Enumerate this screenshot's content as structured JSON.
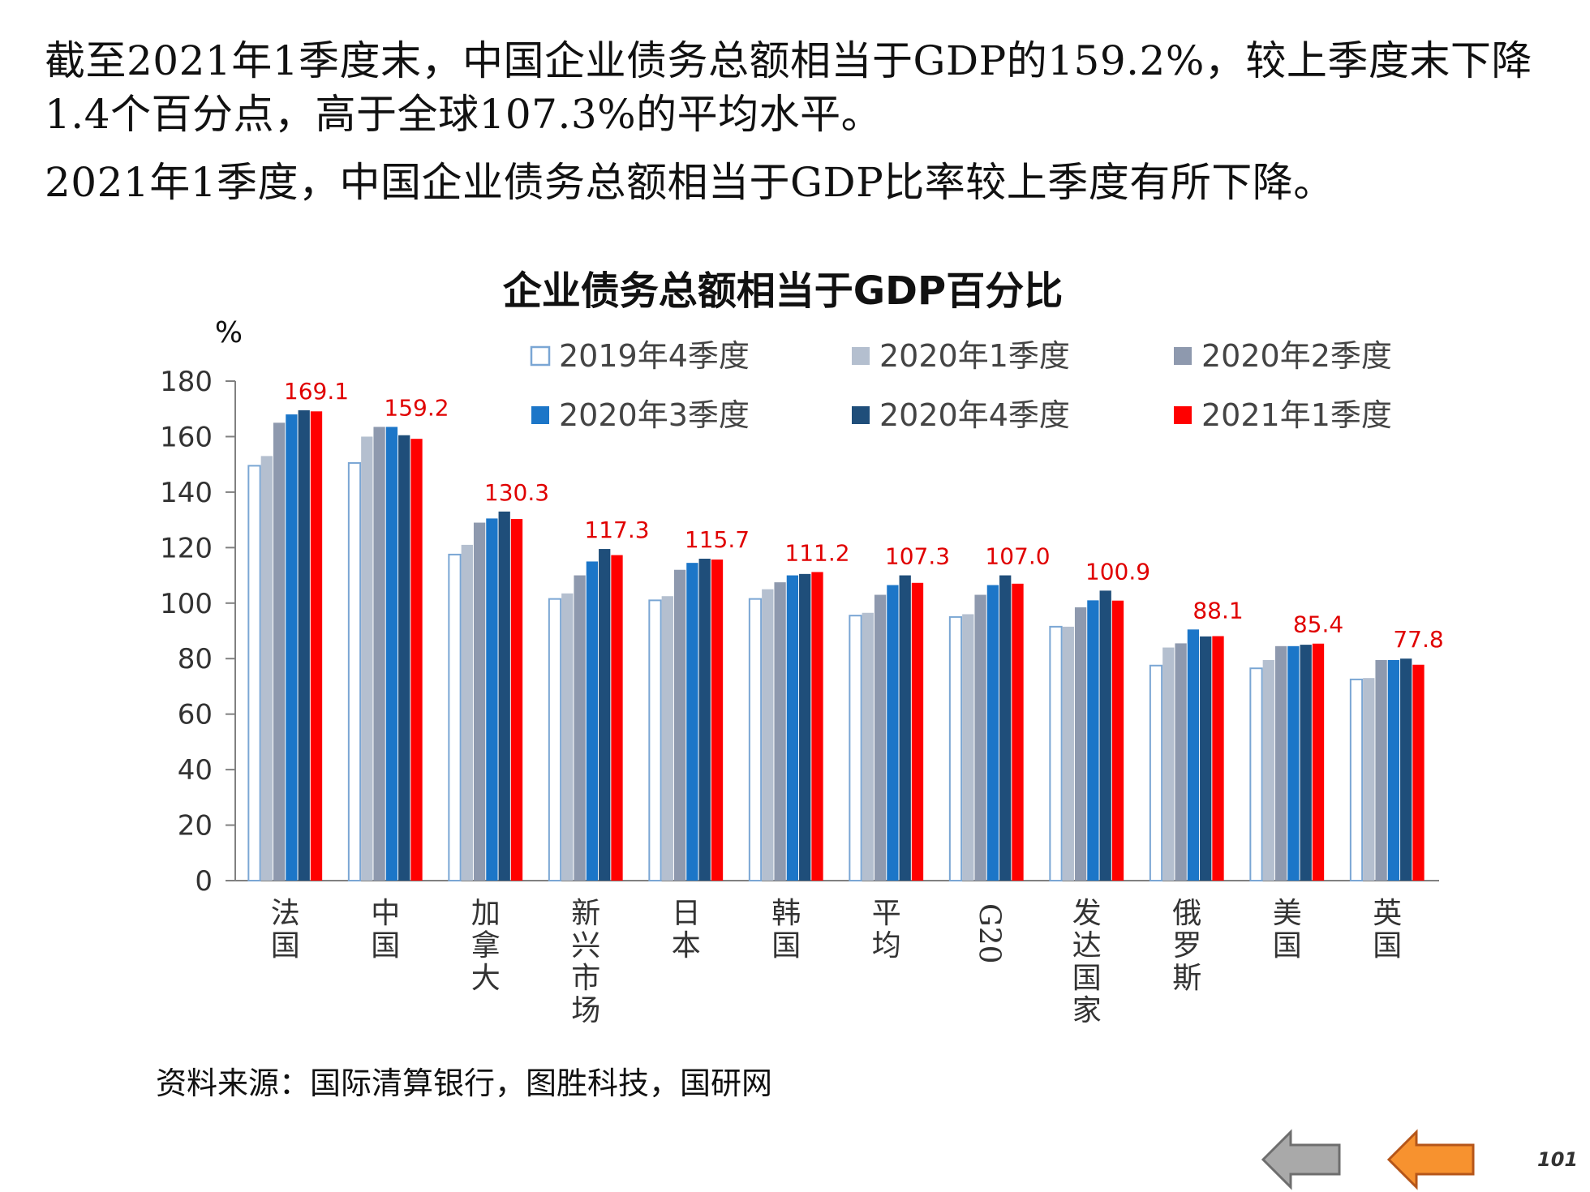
{
  "intro": {
    "line1": "截至2021年1季度末，中国企业债务总额相当于GDP的159.2%，较上季度末下降1.4个百分点，高于全球107.3%的平均水平。",
    "line2": "2021年1季度，中国企业债务总额相当于GDP比率较上季度有所下降。"
  },
  "source": "资料来源：国际清算银行，图胜科技，国研网",
  "page_number": "101",
  "nav": {
    "prev_icon": "arrow-left-gray-icon",
    "next_icon": "arrow-left-orange-icon"
  },
  "colors": {
    "2019Q4": "#ffffff",
    "2019Q4_border": "#7aa6d4",
    "2020Q1": "#b4bfcf",
    "2020Q2": "#8e99ae",
    "2020Q3": "#1c76c8",
    "2020Q4": "#1f4e7a",
    "2021Q1": "#ff0000",
    "label": "#e00000"
  },
  "chart_data": {
    "type": "bar",
    "title": "企业债务总额相当于GDP百分比",
    "ylabel": "%",
    "ylim": [
      0,
      180
    ],
    "yticks": [
      0,
      20,
      40,
      60,
      80,
      100,
      120,
      140,
      160,
      180
    ],
    "grid": false,
    "legend_position": "top-right",
    "categories": [
      "法国",
      "中国",
      "加拿大",
      "新兴市场",
      "日本",
      "韩国",
      "平均",
      "G20",
      "发达国家",
      "俄罗斯",
      "美国",
      "英国"
    ],
    "series": [
      {
        "name": "2019年4季度",
        "values": [
          149.5,
          150.5,
          117.5,
          101.5,
          101.0,
          101.5,
          95.5,
          95.0,
          91.5,
          77.5,
          76.5,
          72.5
        ]
      },
      {
        "name": "2020年1季度",
        "values": [
          153.0,
          160.0,
          121.0,
          103.5,
          102.5,
          105.0,
          96.5,
          96.0,
          91.5,
          84.0,
          79.5,
          73.0
        ]
      },
      {
        "name": "2020年2季度",
        "values": [
          165.0,
          163.5,
          129.0,
          110.0,
          112.0,
          107.5,
          103.0,
          103.0,
          98.5,
          85.5,
          84.5,
          79.5
        ]
      },
      {
        "name": "2020年3季度",
        "values": [
          168.0,
          163.5,
          130.5,
          115.0,
          114.5,
          110.0,
          106.5,
          106.5,
          101.0,
          90.5,
          84.5,
          79.5
        ]
      },
      {
        "name": "2020年4季度",
        "values": [
          169.5,
          160.5,
          133.0,
          119.5,
          116.0,
          110.5,
          110.0,
          110.0,
          104.5,
          88.0,
          85.0,
          80.0
        ]
      },
      {
        "name": "2021年1季度",
        "values": [
          169.1,
          159.2,
          130.3,
          117.3,
          115.7,
          111.2,
          107.3,
          107.0,
          100.9,
          88.1,
          85.4,
          77.8
        ]
      }
    ],
    "data_labels": [
      "169.1",
      "159.2",
      "130.3",
      "117.3",
      "115.7",
      "111.2",
      "107.3",
      "107.0",
      "100.9",
      "88.1",
      "85.4",
      "77.8"
    ]
  }
}
